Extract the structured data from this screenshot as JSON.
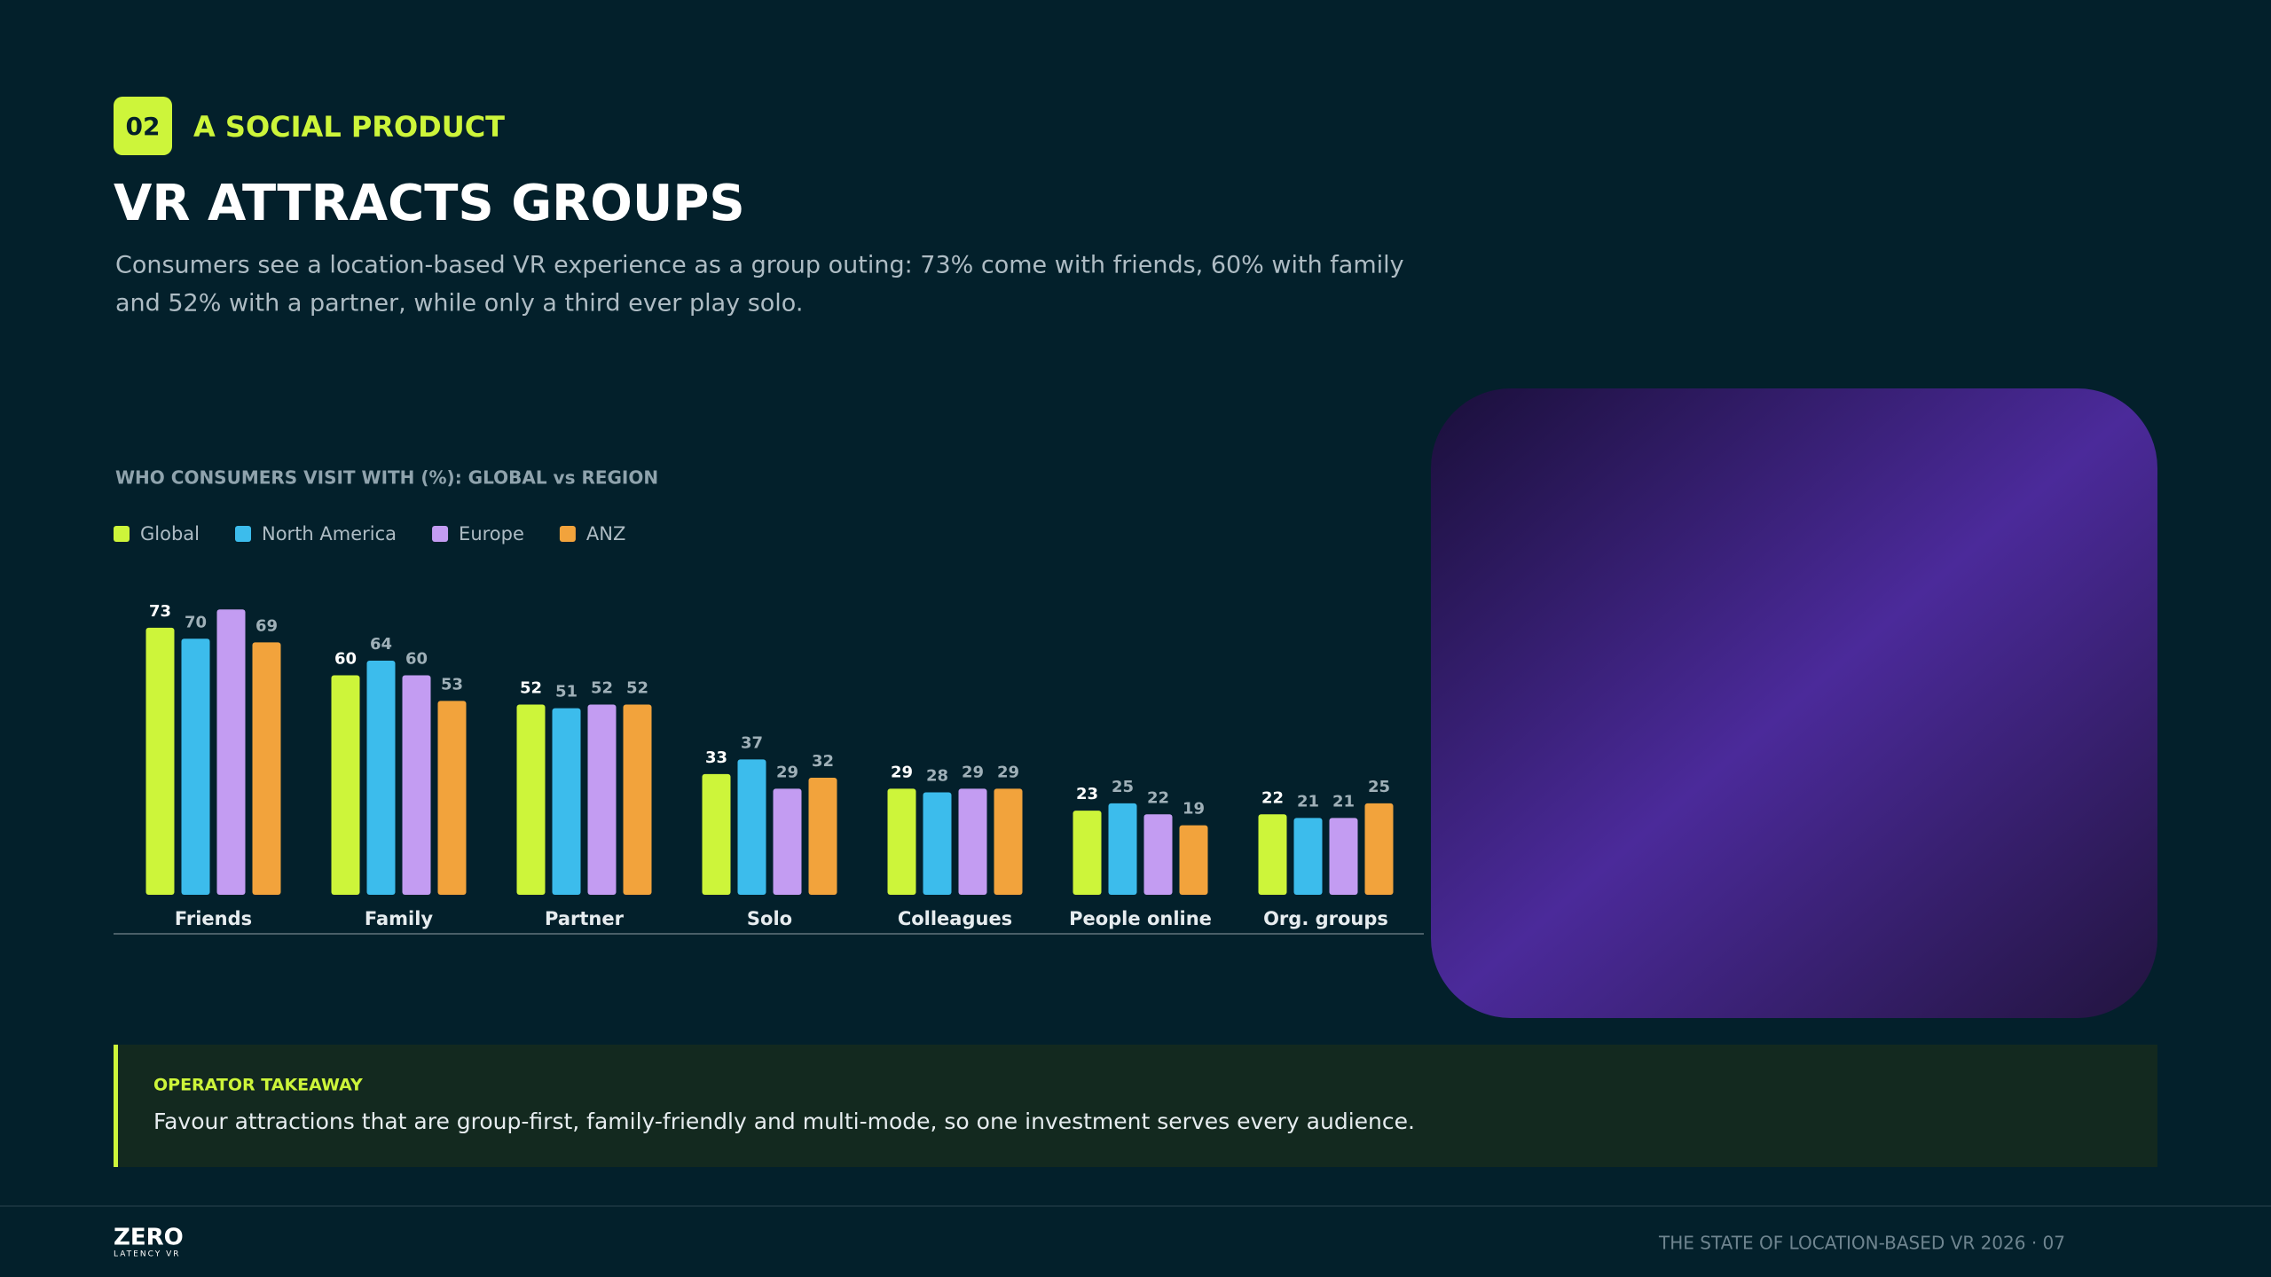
{
  "header": {
    "badge": "02",
    "section": "A SOCIAL PRODUCT",
    "title": "VR ATTRACTS GROUPS",
    "subtitle_lines": [
      "Consumers see a location-based VR experience as a group outing: 73% come with friends, 60% with family",
      "and 52% with a partner, while only a third ever play solo."
    ]
  },
  "chart_data": {
    "type": "bar",
    "title": "WHO CONSUMERS VISIT WITH (%): GLOBAL vs REGION",
    "categories": [
      "Friends",
      "Family",
      "Partner",
      "Solo",
      "Colleagues",
      "People online",
      "Org. groups"
    ],
    "series": [
      {
        "name": "Global",
        "color": "#cdf53a",
        "values": [
          73,
          60,
          52,
          33,
          29,
          23,
          22
        ]
      },
      {
        "name": "North America",
        "color": "#3cbcec",
        "values": [
          70,
          64,
          51,
          37,
          28,
          25,
          21
        ]
      },
      {
        "name": "Europe",
        "color": "#c39cf2",
        "values": [
          78,
          60,
          52,
          29,
          29,
          22,
          21
        ],
        "value_labels": [
          null,
          "60",
          "52",
          "29",
          "29",
          "22",
          "21"
        ]
      },
      {
        "name": "ANZ",
        "color": "#f2a33c",
        "values": [
          69,
          53,
          52,
          32,
          29,
          19,
          25
        ]
      }
    ],
    "ylim": [
      0,
      80
    ],
    "legend": "top-left"
  },
  "takeaway": {
    "label": "OPERATOR TAKEAWAY",
    "text": "Favour attractions that are group-first, family-friendly and multi-mode, so one investment serves every audience."
  },
  "footer": {
    "logo": "ZERO",
    "logo_sub": "LATENCY VR",
    "text": "THE STATE OF LOCATION-BASED VR 2026 · 07"
  }
}
